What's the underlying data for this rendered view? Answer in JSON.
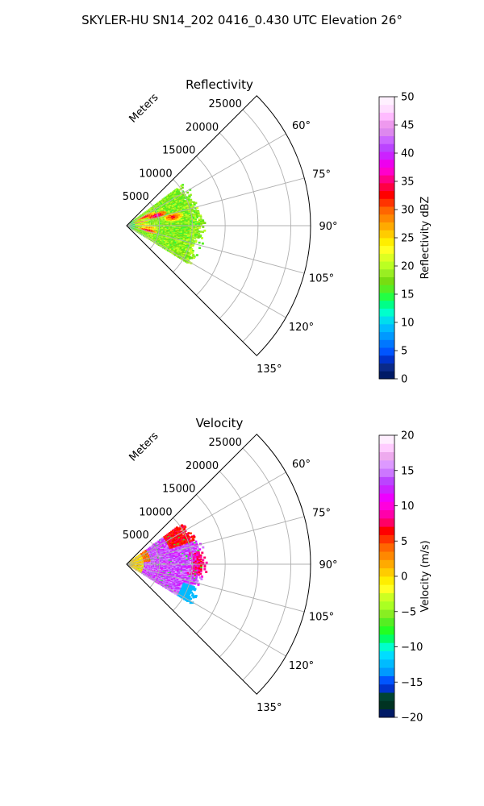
{
  "figure_title": "SKYLER-HU  SN14_202  0416_0.430 UTC Elevation 26°",
  "chart_data": [
    {
      "type": "heatmap",
      "subtype": "polar-sector-radar-ppi",
      "title": "Reflectivity",
      "radial_axis_label": "Meters",
      "radial_ticks": [
        "5000",
        "10000",
        "15000",
        "20000",
        "25000"
      ],
      "radial_tick_values": [
        5000,
        10000,
        15000,
        20000,
        25000
      ],
      "radial_range": [
        0,
        28000
      ],
      "angular_ticks": [
        "60°",
        "75°",
        "90°",
        "105°",
        "120°",
        "135°"
      ],
      "angular_tick_values": [
        60,
        75,
        90,
        105,
        120,
        135
      ],
      "angular_range": [
        45,
        135
      ],
      "grid": true,
      "colorbar": {
        "label": "Reflectivity dBZ",
        "range": [
          0,
          50
        ],
        "ticks": [
          "0",
          "5",
          "10",
          "15",
          "20",
          "25",
          "30",
          "35",
          "40",
          "45",
          "50"
        ],
        "tick_values": [
          0,
          5,
          10,
          15,
          20,
          25,
          30,
          35,
          40,
          45,
          50
        ]
      }
    },
    {
      "type": "heatmap",
      "subtype": "polar-sector-radar-ppi",
      "title": "Velocity",
      "radial_axis_label": "Meters",
      "radial_ticks": [
        "5000",
        "10000",
        "15000",
        "20000",
        "25000"
      ],
      "radial_tick_values": [
        5000,
        10000,
        15000,
        20000,
        25000
      ],
      "radial_range": [
        0,
        28000
      ],
      "angular_ticks": [
        "60°",
        "75°",
        "90°",
        "105°",
        "120°",
        "135°"
      ],
      "angular_tick_values": [
        60,
        75,
        90,
        105,
        120,
        135
      ],
      "angular_range": [
        45,
        135
      ],
      "grid": true,
      "colorbar": {
        "label": "Velocity (m/s)",
        "range": [
          -20,
          20
        ],
        "ticks": [
          "−20",
          "−15",
          "−10",
          "−5",
          "0",
          "5",
          "10",
          "15",
          "20"
        ],
        "tick_values": [
          -20,
          -15,
          -10,
          -5,
          0,
          5,
          10,
          15,
          20
        ]
      }
    }
  ],
  "colors": {
    "reflectivity_scale": [
      "#001a66",
      "#0a2a8a",
      "#0033cc",
      "#0055ff",
      "#0077ff",
      "#0099ff",
      "#00bbff",
      "#00ddee",
      "#00ffcc",
      "#00ff88",
      "#22ff44",
      "#55ee22",
      "#77dd11",
      "#99ee22",
      "#bbff22",
      "#ddff22",
      "#ffff22",
      "#ffee00",
      "#ffcc00",
      "#ffaa00",
      "#ff8800",
      "#ff6600",
      "#ff3300",
      "#ff0000",
      "#ff0044",
      "#ff0088",
      "#ff00cc",
      "#ee00ee",
      "#cc22ff",
      "#bb44ff",
      "#cc66ff",
      "#dd88ee",
      "#ee99ee",
      "#ffbbff",
      "#ffddff",
      "#fff0ff"
    ],
    "velocity_scale": [
      "#001a66",
      "#003322",
      "#004433",
      "#0033cc",
      "#0055ff",
      "#0099ff",
      "#00bbff",
      "#00ddff",
      "#00ffcc",
      "#00ff66",
      "#22ff22",
      "#55ee22",
      "#88ee22",
      "#aaff22",
      "#ccff22",
      "#ffff22",
      "#ffee00",
      "#ffcc00",
      "#ffaa00",
      "#ff8800",
      "#ff6600",
      "#ff3300",
      "#ff0000",
      "#ff0066",
      "#ff00aa",
      "#ff00dd",
      "#ee00ff",
      "#cc22ff",
      "#bb44ff",
      "#cc77ff",
      "#dd99ff",
      "#eeaaee",
      "#ffccff",
      "#ffeeff"
    ]
  }
}
